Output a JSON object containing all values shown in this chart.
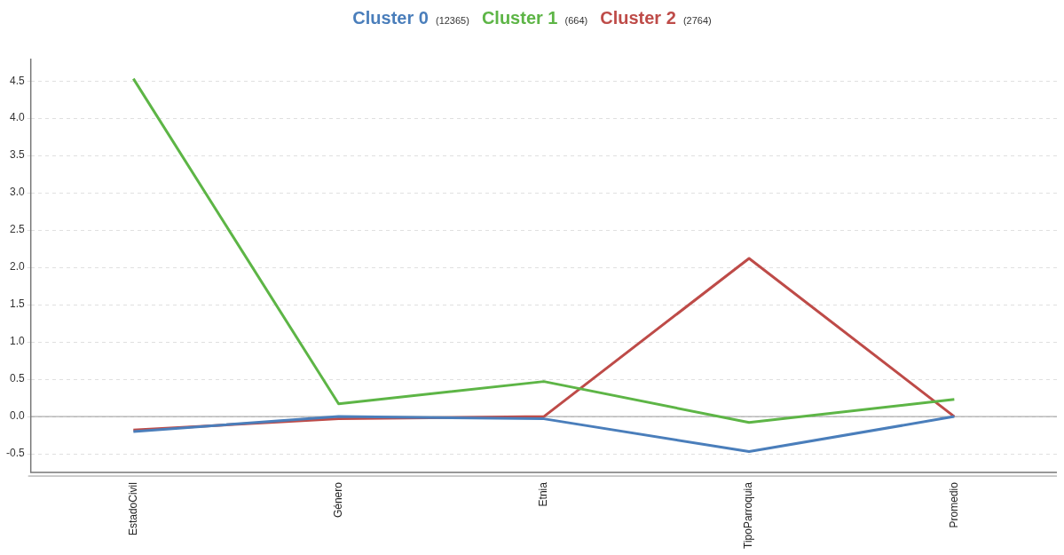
{
  "chart_data": {
    "type": "line",
    "categories": [
      "EstadoCivil",
      "Género",
      "Etnia",
      "TipoParroquia",
      "Promedio"
    ],
    "series": [
      {
        "name": "Cluster 0 (12365)",
        "color": "#4a7ebb",
        "values": [
          -0.2,
          0.0,
          -0.03,
          -0.47,
          0.0
        ]
      },
      {
        "name": "Cluster 1 (664)",
        "color": "#5db546",
        "values": [
          4.53,
          0.17,
          0.47,
          -0.08,
          0.23
        ]
      },
      {
        "name": "Cluster 2 (2764)",
        "color": "#be4b48",
        "values": [
          -0.18,
          -0.03,
          0.0,
          2.12,
          0.0
        ]
      }
    ],
    "ylim": [
      -0.75,
      4.8
    ],
    "yticks": [
      -0.5,
      {
        "value": 0,
        "label": "0.0"
      },
      0.5,
      {
        "value": 1,
        "label": "1.0"
      },
      1.5,
      {
        "value": 2,
        "label": "2.0"
      },
      2.5,
      {
        "value": 3,
        "label": "3.0"
      },
      3.5,
      {
        "value": 4,
        "label": "4.0"
      },
      4.5
    ],
    "ref_lines": [
      {
        "axis": "y",
        "value": 0,
        "color": "#999999"
      }
    ],
    "grid": "y",
    "legend": "top",
    "marker": "none",
    "line_style": "solid"
  }
}
